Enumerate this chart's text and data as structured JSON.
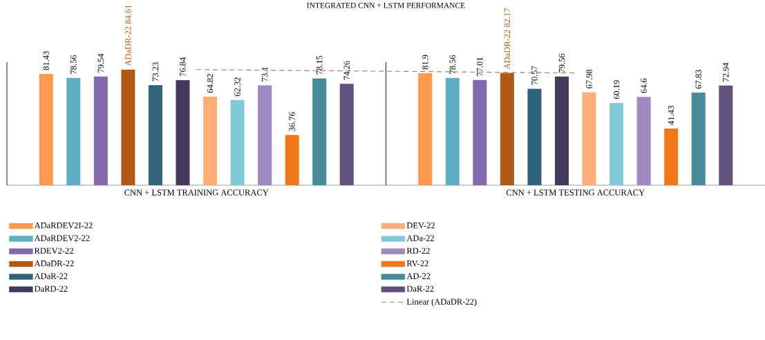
{
  "chart_data": {
    "type": "bar",
    "title": "INTEGRATED CNN + LSTM PERFORMANCE",
    "categories": [
      "CNN + LSTM TRAINING ACCURACY",
      "CNN + LSTM TESTING ACCURACY"
    ],
    "data_labels": true,
    "legend": "bottom",
    "series": [
      {
        "name": "ADaRDEV2I-22",
        "color": "#fd9a51",
        "values": [
          81.43,
          81.9
        ]
      },
      {
        "name": "ADaRDEV2-22",
        "color": "#5cafc4",
        "values": [
          78.56,
          78.56
        ]
      },
      {
        "name": "RDEV2-22",
        "color": "#8468ac",
        "values": [
          79.54,
          77.01
        ]
      },
      {
        "name": "ADaDR-22",
        "color": "#b35917",
        "values": [
          84.61,
          82.17
        ],
        "value_labels": [
          "ADaDR-22 84.61",
          "ADaDR-22 82.17"
        ]
      },
      {
        "name": "ADaR-22",
        "color": "#306379",
        "values": [
          73.23,
          70.57
        ]
      },
      {
        "name": "DaRD-22",
        "color": "#453a5b",
        "values": [
          76.84,
          79.56
        ]
      },
      {
        "name": "DEV-22",
        "color": "#feae78",
        "values": [
          64.82,
          67.98
        ]
      },
      {
        "name": "ADa-22",
        "color": "#82c9d6",
        "values": [
          62.32,
          60.19
        ]
      },
      {
        "name": "RD-22",
        "color": "#a089c1",
        "values": [
          73.1,
          64.6
        ]
      },
      {
        "name": "RV-22",
        "color": "#f07819",
        "values": [
          36.76,
          41.43
        ]
      },
      {
        "name": "AD-22",
        "color": "#478a9b",
        "values": [
          78.15,
          67.83
        ]
      },
      {
        "name": "DaR-22",
        "color": "#62527e",
        "values": [
          74.26,
          72.94
        ]
      },
      {
        "name": "Linear (ADaDR-22)",
        "type": "line",
        "line_style": "dashed",
        "color": "#a07862",
        "x": [
          "CNN + LSTM TRAINING ACCURACY",
          "CNN + LSTM TESTING ACCURACY"
        ],
        "values": [
          84.61,
          82.17
        ],
        "value_labels": [
          null,
          null
        ]
      }
    ]
  }
}
